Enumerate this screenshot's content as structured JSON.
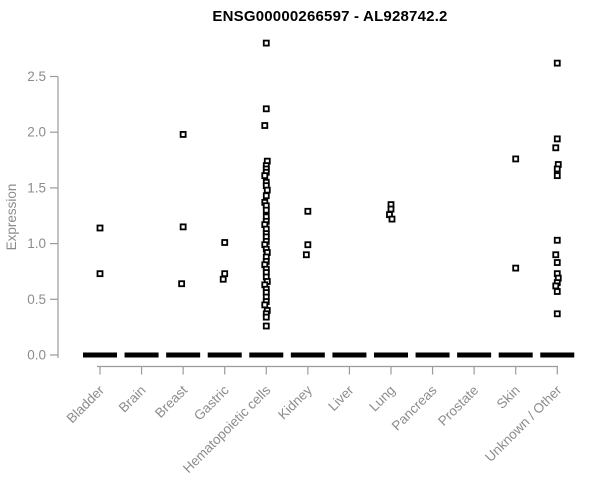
{
  "chart_data": {
    "type": "scatter",
    "title": "ENSG00000266597 - AL928742.2",
    "xlabel": "",
    "ylabel": "Expression",
    "ylim": [
      0,
      2.9
    ],
    "yticks": [
      "0.0",
      "0.5",
      "1.0",
      "1.5",
      "2.0",
      "2.5"
    ],
    "grid": false,
    "legend": "none",
    "marker": "open-square",
    "note_zero_cluster": "every category has a dense cluster of samples at expression 0 rendered as a thick black dash",
    "categories": [
      {
        "label": "Bladder",
        "zero_cluster": true,
        "points": [
          1.14,
          0.73
        ]
      },
      {
        "label": "Brain",
        "zero_cluster": true,
        "points": []
      },
      {
        "label": "Breast",
        "zero_cluster": true,
        "points": [
          1.98,
          1.15,
          0.64
        ]
      },
      {
        "label": "Gastric",
        "zero_cluster": true,
        "points": [
          1.01,
          0.73,
          0.68
        ]
      },
      {
        "label": "Hematopoietic cells",
        "zero_cluster": true,
        "points": [
          2.8,
          2.21,
          2.06,
          1.74,
          1.7,
          1.67,
          1.64,
          1.61,
          1.55,
          1.52,
          1.48,
          1.43,
          1.37,
          1.34,
          1.3,
          1.24,
          1.2,
          1.17,
          1.13,
          1.09,
          1.06,
          1.02,
          0.99,
          0.95,
          0.92,
          0.88,
          0.84,
          0.81,
          0.77,
          0.74,
          0.7,
          0.66,
          0.63,
          0.59,
          0.56,
          0.52,
          0.48,
          0.45,
          0.4,
          0.37,
          0.34,
          0.26
        ]
      },
      {
        "label": "Kidney",
        "zero_cluster": true,
        "points": [
          1.29,
          0.99,
          0.9
        ]
      },
      {
        "label": "Liver",
        "zero_cluster": true,
        "points": []
      },
      {
        "label": "Lung",
        "zero_cluster": true,
        "points": [
          1.35,
          1.31,
          1.26,
          1.22
        ]
      },
      {
        "label": "Pancreas",
        "zero_cluster": true,
        "points": []
      },
      {
        "label": "Prostate",
        "zero_cluster": true,
        "points": []
      },
      {
        "label": "Skin",
        "zero_cluster": true,
        "points": [
          1.76,
          0.78
        ]
      },
      {
        "label": "Unknown / Other",
        "zero_cluster": true,
        "points": [
          2.62,
          1.94,
          1.86,
          1.71,
          1.67,
          1.61,
          1.03,
          0.9,
          0.83,
          0.73,
          0.69,
          0.65,
          0.62,
          0.57,
          0.37
        ]
      }
    ],
    "colors": {
      "title": "#000000",
      "axis_text": "#8c8c8c",
      "axis_line": "#9b9b9b",
      "point": "#000000",
      "point_fill": "#ffffff",
      "background": "#ffffff"
    }
  }
}
